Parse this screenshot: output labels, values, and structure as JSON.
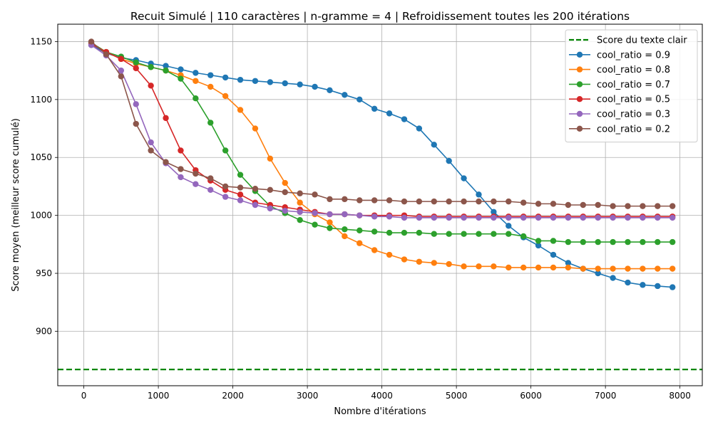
{
  "chart_data": {
    "type": "line",
    "title": "Recuit Simulé | 110 caractères | n-gramme = 4 | Refroidissement toutes les 200 itérations",
    "xlabel": "Nombre d'itérations",
    "ylabel": "Score moyen (meilleur score cumulé)",
    "xlim": [
      -350,
      8300
    ],
    "ylim": [
      853,
      1165
    ],
    "xticks": [
      0,
      1000,
      2000,
      3000,
      4000,
      5000,
      6000,
      7000,
      8000
    ],
    "xtick_labels": [
      "0",
      "1000",
      "2000",
      "3000",
      "4000",
      "5000",
      "6000",
      "7000",
      "8000"
    ],
    "yticks": [
      900,
      950,
      1000,
      1050,
      1100,
      1150
    ],
    "ytick_labels": [
      "900",
      "950",
      "1000",
      "1050",
      "1100",
      "1150"
    ],
    "grid": true,
    "legend_position": "top-right",
    "reference_line": {
      "name": "Score du texte clair",
      "y": 867,
      "color": "#008000",
      "style": "dashed"
    },
    "x": [
      100,
      300,
      500,
      700,
      900,
      1100,
      1300,
      1500,
      1700,
      1900,
      2100,
      2300,
      2500,
      2700,
      2900,
      3100,
      3300,
      3500,
      3700,
      3900,
      4100,
      4300,
      4500,
      4700,
      4900,
      5100,
      5300,
      5500,
      5700,
      5900,
      6100,
      6300,
      6500,
      6700,
      6900,
      7100,
      7300,
      7500,
      7700,
      7900
    ],
    "series": [
      {
        "name": "cool_ratio = 0.9",
        "color": "#1f77b4",
        "values": [
          1147,
          1140,
          1136,
          1134,
          1131,
          1129,
          1126,
          1123,
          1121,
          1119,
          1117,
          1116,
          1115,
          1114,
          1113,
          1111,
          1108,
          1104,
          1100,
          1092,
          1088,
          1083,
          1075,
          1061,
          1047,
          1032,
          1018,
          1003,
          991,
          981,
          974,
          966,
          959,
          954,
          950,
          946,
          942,
          940,
          939,
          938
        ]
      },
      {
        "name": "cool_ratio = 0.8",
        "color": "#ff7f0e",
        "values": [
          1149,
          1141,
          1135,
          1131,
          1128,
          1125,
          1121,
          1116,
          1111,
          1103,
          1091,
          1075,
          1049,
          1028,
          1011,
          1001,
          994,
          982,
          976,
          970,
          966,
          962,
          960,
          959,
          958,
          956,
          956,
          956,
          955,
          955,
          955,
          955,
          955,
          954,
          954,
          954,
          954,
          954,
          954,
          954
        ]
      },
      {
        "name": "cool_ratio = 0.7",
        "color": "#2ca02c",
        "values": [
          1149,
          1141,
          1137,
          1132,
          1128,
          1125,
          1118,
          1101,
          1080,
          1056,
          1035,
          1021,
          1008,
          1002,
          996,
          992,
          989,
          988,
          987,
          986,
          985,
          985,
          985,
          984,
          984,
          984,
          984,
          984,
          984,
          982,
          978,
          978,
          977,
          977,
          977,
          977,
          977,
          977,
          977,
          977
        ]
      },
      {
        "name": "cool_ratio = 0.5",
        "color": "#d62728",
        "values": [
          1148,
          1141,
          1135,
          1127,
          1112,
          1084,
          1056,
          1039,
          1030,
          1022,
          1018,
          1011,
          1009,
          1007,
          1005,
          1003,
          1001,
          1001,
          1000,
          1000,
          1000,
          1000,
          999,
          999,
          999,
          999,
          999,
          999,
          999,
          999,
          999,
          999,
          999,
          999,
          999,
          999,
          999,
          999,
          999,
          999
        ]
      },
      {
        "name": "cool_ratio = 0.3",
        "color": "#9467bd",
        "values": [
          1147,
          1138,
          1125,
          1096,
          1063,
          1045,
          1033,
          1027,
          1022,
          1016,
          1013,
          1009,
          1006,
          1004,
          1003,
          1002,
          1001,
          1001,
          1000,
          999,
          999,
          998,
          998,
          998,
          998,
          998,
          998,
          998,
          998,
          998,
          998,
          998,
          998,
          998,
          998,
          998,
          998,
          998,
          998,
          998
        ]
      },
      {
        "name": "cool_ratio = 0.2",
        "color": "#8c564b",
        "values": [
          1150,
          1139,
          1120,
          1079,
          1056,
          1046,
          1040,
          1036,
          1032,
          1025,
          1024,
          1023,
          1022,
          1020,
          1019,
          1018,
          1014,
          1014,
          1013,
          1013,
          1013,
          1012,
          1012,
          1012,
          1012,
          1012,
          1012,
          1012,
          1012,
          1011,
          1010,
          1010,
          1009,
          1009,
          1009,
          1008,
          1008,
          1008,
          1008,
          1008
        ]
      }
    ]
  }
}
